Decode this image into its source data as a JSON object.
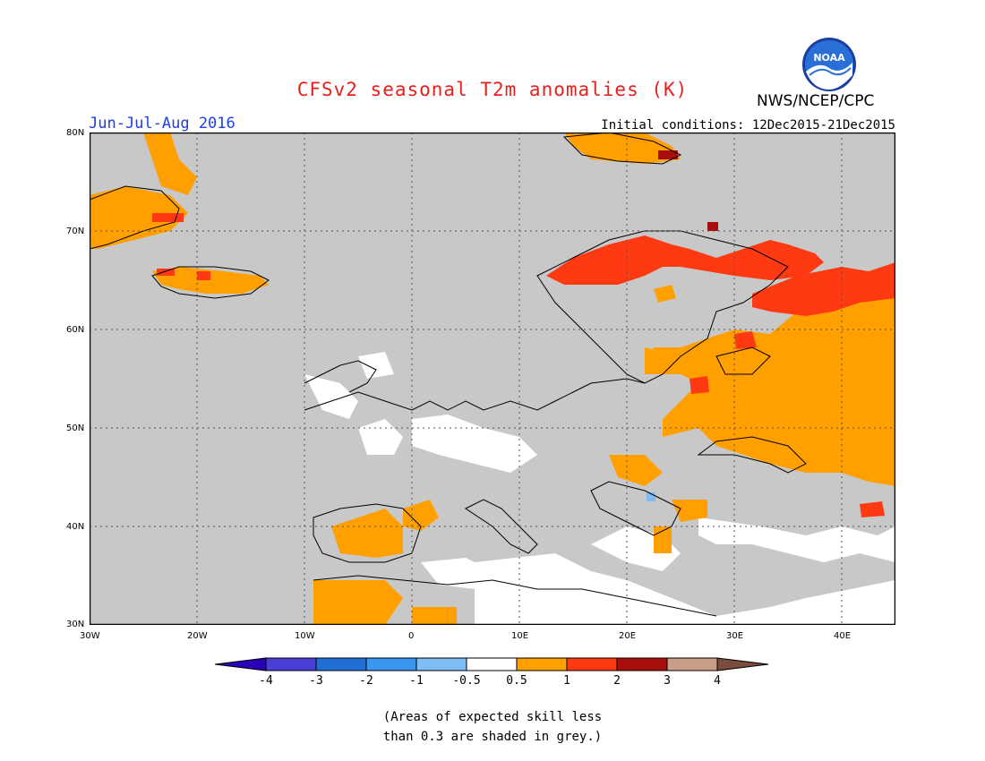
{
  "title": "CFSv2 seasonal T2m anomalies (K)",
  "organization": "NWS/NCEP/CPC",
  "logo_text": "NOAA",
  "season": "Jun-Jul-Aug 2016",
  "initial_conditions": "Initial conditions: 12Dec2015-21Dec2015",
  "lat_labels": [
    "80N",
    "70N",
    "60N",
    "50N",
    "40N",
    "30N"
  ],
  "lon_labels": [
    "30W",
    "20W",
    "10W",
    "0",
    "10E",
    "20E",
    "30E",
    "40E"
  ],
  "colorbar": {
    "colors": [
      "#2a00b8",
      "#4a3ed6",
      "#1f6fd6",
      "#3a96ee",
      "#7fbdf6",
      "#ffffff",
      "#ff9f00",
      "#ff3a12",
      "#a80e0e",
      "#c8a08a",
      "#7a4c3c"
    ],
    "labels": [
      "-4",
      "-3",
      "-2",
      "-1",
      "-0.5",
      "0.5",
      "1",
      "2",
      "3",
      "4"
    ]
  },
  "note_lines": [
    "(Areas of expected skill less",
    "than 0.3 are shaded in grey.)"
  ],
  "colors": {
    "grey": "#c8c8c8",
    "white": "#ffffff",
    "orange": "#ff9f00",
    "red": "#ff3a12",
    "darkred": "#a80e0e",
    "lightblue": "#7fbdf6"
  }
}
